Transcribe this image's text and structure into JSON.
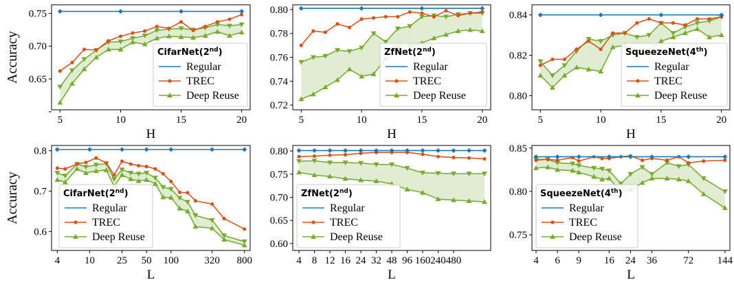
{
  "colors": {
    "regular": "#1f77b4",
    "trec": "#d95319",
    "deep_reuse": "#77ac30",
    "band": "#77ac30"
  },
  "chart_data": [
    {
      "id": "top-cifarnet",
      "type": "line",
      "legend_title": "CifarNet(2",
      "legend_sup": "nd",
      "legend_placement": "bottom-right",
      "xlabel": "H",
      "ylabel": "Accuracy",
      "xscale": "linear",
      "xlim": [
        4.3,
        20.7
      ],
      "ylim": [
        0.603,
        0.763
      ],
      "xticks": [
        5,
        10,
        15,
        20
      ],
      "xtick_labels": [
        "5",
        "10",
        "15",
        "20"
      ],
      "yticks": [
        0.65,
        0.7,
        0.75
      ],
      "ytick_labels": [
        "0.65",
        "0.70",
        "0.75"
      ],
      "y_minor_ticks": [
        0.6
      ],
      "regular": {
        "x": [
          5,
          10,
          15,
          20
        ],
        "y": [
          0.753,
          0.753,
          0.753,
          0.753
        ]
      },
      "x": [
        5,
        6,
        7,
        8,
        9,
        10,
        11,
        12,
        13,
        14,
        15,
        16,
        17,
        18,
        19,
        20
      ],
      "series": [
        {
          "name": "TREC",
          "values": [
            0.662,
            0.675,
            0.695,
            0.694,
            0.708,
            0.715,
            0.72,
            0.723,
            0.73,
            0.727,
            0.737,
            0.724,
            0.73,
            0.737,
            0.741,
            0.748
          ]
        },
        {
          "name": "Deep Reuse",
          "upper": [
            0.638,
            0.663,
            0.68,
            0.694,
            0.706,
            0.707,
            0.712,
            0.716,
            0.724,
            0.726,
            0.727,
            0.725,
            0.728,
            0.733,
            0.731,
            0.733
          ],
          "lower": [
            0.614,
            0.643,
            0.665,
            0.683,
            0.695,
            0.695,
            0.706,
            0.703,
            0.712,
            0.715,
            0.714,
            0.713,
            0.716,
            0.722,
            0.716,
            0.721
          ]
        }
      ]
    },
    {
      "id": "top-zfnet",
      "type": "line",
      "legend_title": "ZfNet(2",
      "legend_sup": "nd",
      "legend_placement": "bottom-right",
      "xlabel": "H",
      "ylabel": "",
      "xscale": "linear",
      "xlim": [
        4.3,
        20.7
      ],
      "ylim": [
        0.716,
        0.804
      ],
      "xticks": [
        5,
        10,
        15,
        20
      ],
      "xtick_labels": [
        "5",
        "10",
        "15",
        "20"
      ],
      "yticks": [
        0.72,
        0.74,
        0.76,
        0.78,
        0.8
      ],
      "ytick_labels": [
        "0.72",
        "0.74",
        "0.76",
        "0.78",
        "0.80"
      ],
      "regular": {
        "x": [
          5,
          10,
          15,
          20
        ],
        "y": [
          0.801,
          0.801,
          0.801,
          0.801
        ]
      },
      "x": [
        5,
        6,
        7,
        8,
        9,
        10,
        11,
        12,
        13,
        14,
        15,
        16,
        17,
        18,
        19,
        20
      ],
      "series": [
        {
          "name": "TREC",
          "values": [
            0.77,
            0.782,
            0.781,
            0.788,
            0.785,
            0.792,
            0.793,
            0.794,
            0.794,
            0.798,
            0.797,
            0.794,
            0.799,
            0.795,
            0.797,
            0.798
          ]
        },
        {
          "name": "Deep Reuse",
          "upper": [
            0.756,
            0.76,
            0.761,
            0.766,
            0.765,
            0.768,
            0.78,
            0.773,
            0.784,
            0.786,
            0.794,
            0.795,
            0.794,
            0.796,
            0.797,
            0.797
          ],
          "lower": [
            0.725,
            0.729,
            0.735,
            0.741,
            0.75,
            0.744,
            0.746,
            0.759,
            0.77,
            0.77,
            0.772,
            0.776,
            0.779,
            0.782,
            0.783,
            0.782
          ]
        }
      ]
    },
    {
      "id": "top-squeezenet",
      "type": "line",
      "legend_title": "SqueezeNet(4",
      "legend_sup": "th",
      "legend_placement": "bottom-right",
      "xlabel": "H",
      "ylabel": "",
      "xscale": "linear",
      "xlim": [
        4.3,
        20.7
      ],
      "ylim": [
        0.793,
        0.845
      ],
      "xticks": [
        5,
        10,
        15,
        20
      ],
      "xtick_labels": [
        "5",
        "10",
        "15",
        "20"
      ],
      "yticks": [
        0.8,
        0.82,
        0.84
      ],
      "ytick_labels": [
        "0.80",
        "0.82",
        "0.84"
      ],
      "regular": {
        "x": [
          5,
          10,
          15,
          20
        ],
        "y": [
          0.84,
          0.84,
          0.84,
          0.84
        ]
      },
      "x": [
        5,
        6,
        7,
        8,
        9,
        10,
        11,
        12,
        13,
        14,
        15,
        16,
        17,
        18,
        19,
        20
      ],
      "series": [
        {
          "name": "TREC",
          "values": [
            0.815,
            0.818,
            0.818,
            0.823,
            0.827,
            0.823,
            0.831,
            0.831,
            0.836,
            0.838,
            0.836,
            0.836,
            0.835,
            0.838,
            0.838,
            0.839
          ]
        },
        {
          "name": "Deep Reuse",
          "upper": [
            0.817,
            0.81,
            0.815,
            0.822,
            0.828,
            0.827,
            0.83,
            0.831,
            0.829,
            0.83,
            0.836,
            0.831,
            0.834,
            0.836,
            0.837,
            0.839
          ],
          "lower": [
            0.81,
            0.804,
            0.81,
            0.814,
            0.813,
            0.812,
            0.824,
            0.825,
            0.82,
            0.822,
            0.827,
            0.829,
            0.831,
            0.833,
            0.829,
            0.83
          ]
        }
      ]
    },
    {
      "id": "bottom-cifarnet",
      "type": "line",
      "legend_title": "CifarNet(2",
      "legend_sup": "nd",
      "legend_placement": "bottom-left",
      "xlabel": "L",
      "ylabel": "Accuracy",
      "xscale": "log",
      "xlim": [
        3.4,
        940
      ],
      "ylim": [
        0.553,
        0.813
      ],
      "xticks": [
        4,
        10,
        25,
        50,
        100,
        320,
        800
      ],
      "xtick_labels": [
        "4",
        "10",
        "25",
        "50",
        "100",
        "320",
        "800"
      ],
      "yticks": [
        0.6,
        0.7,
        0.8
      ],
      "ytick_labels": [
        "0.6",
        "0.7",
        "0.8"
      ],
      "regular": {
        "x": [
          4,
          10,
          25,
          50,
          100,
          320,
          800
        ],
        "y": [
          0.803,
          0.803,
          0.803,
          0.803,
          0.803,
          0.803,
          0.803
        ]
      },
      "x": [
        4,
        5,
        7,
        9,
        12,
        16,
        20,
        25,
        32,
        40,
        50,
        64,
        80,
        100,
        128,
        160,
        200,
        320,
        450,
        800
      ],
      "series": [
        {
          "name": "TREC",
          "values": [
            0.757,
            0.755,
            0.767,
            0.771,
            0.782,
            0.77,
            0.74,
            0.774,
            0.767,
            0.763,
            0.761,
            0.755,
            0.743,
            0.724,
            0.697,
            0.696,
            0.676,
            0.668,
            0.632,
            0.606
          ]
        },
        {
          "name": "Deep Reuse",
          "upper": [
            0.745,
            0.738,
            0.767,
            0.76,
            0.765,
            0.768,
            0.73,
            0.753,
            0.745,
            0.743,
            0.745,
            0.733,
            0.71,
            0.705,
            0.683,
            0.673,
            0.64,
            0.628,
            0.59,
            0.575
          ],
          "lower": [
            0.728,
            0.722,
            0.755,
            0.745,
            0.75,
            0.752,
            0.712,
            0.74,
            0.73,
            0.725,
            0.728,
            0.718,
            0.685,
            0.684,
            0.657,
            0.65,
            0.612,
            0.608,
            0.58,
            0.566
          ]
        }
      ]
    },
    {
      "id": "bottom-zfnet",
      "type": "line",
      "legend_title": "ZfNet(2",
      "legend_sup": "nd",
      "legend_placement": "bottom-left",
      "xlabel": "L",
      "ylabel": "",
      "xscale": "category",
      "xlim": [
        -0.4,
        12.4
      ],
      "ylim": [
        0.585,
        0.812
      ],
      "categories": [
        "4",
        "8",
        "12",
        "16",
        "24",
        "32",
        "48",
        "96",
        "160",
        "240",
        "480"
      ],
      "cat_positions": [
        0,
        1,
        2,
        3,
        4,
        5,
        6,
        7,
        8,
        9,
        10
      ],
      "xticks": [
        0,
        1,
        2,
        3,
        4,
        5,
        6,
        7,
        8,
        9,
        10
      ],
      "yticks": [
        0.6,
        0.65,
        0.7,
        0.75,
        0.8
      ],
      "ytick_labels": [
        "0.60",
        "0.65",
        "0.70",
        "0.75",
        "0.80"
      ],
      "regular": {
        "x": [
          0,
          1,
          2,
          3,
          4,
          5,
          6,
          7,
          8,
          9,
          10,
          11,
          12
        ],
        "y": [
          0.801,
          0.801,
          0.801,
          0.801,
          0.801,
          0.801,
          0.801,
          0.801,
          0.801,
          0.801,
          0.801,
          0.801,
          0.801
        ]
      },
      "x": [
        0,
        1,
        2,
        3,
        4,
        5,
        6,
        7,
        8,
        9,
        10,
        11,
        12
      ],
      "series": [
        {
          "name": "TREC",
          "values": [
            0.788,
            0.789,
            0.791,
            0.792,
            0.795,
            0.797,
            0.797,
            0.797,
            0.793,
            0.788,
            0.786,
            0.785,
            0.783
          ]
        },
        {
          "name": "Deep Reuse",
          "upper": [
            0.778,
            0.779,
            0.775,
            0.775,
            0.774,
            0.771,
            0.771,
            0.763,
            0.753,
            0.752,
            0.751,
            0.751,
            0.751
          ],
          "lower": [
            0.754,
            0.748,
            0.745,
            0.74,
            0.737,
            0.735,
            0.729,
            0.717,
            0.71,
            0.696,
            0.694,
            0.692,
            0.69
          ]
        }
      ]
    },
    {
      "id": "bottom-squeezenet",
      "type": "line",
      "legend_title": "SqueezeNet(4",
      "legend_sup": "th",
      "legend_placement": "bottom-left",
      "xlabel": "L",
      "ylabel": "",
      "xscale": "log",
      "xlim": [
        3.7,
        158
      ],
      "ylim": [
        0.732,
        0.853
      ],
      "xticks": [
        4,
        6,
        9,
        16,
        24,
        36,
        72,
        144
      ],
      "xtick_labels": [
        "4",
        "6",
        "9",
        "16",
        "24",
        "36",
        "72",
        "144"
      ],
      "yticks": [
        0.75,
        0.8,
        0.85
      ],
      "ytick_labels": [
        "0.75",
        "0.80",
        "0.85"
      ],
      "regular": {
        "x": [
          4,
          6,
          9,
          16,
          24,
          36,
          72,
          144
        ],
        "y": [
          0.84,
          0.84,
          0.84,
          0.84,
          0.84,
          0.84,
          0.84,
          0.84
        ]
      },
      "x": [
        4,
        5,
        6,
        8,
        9,
        12,
        14,
        16,
        20,
        24,
        30,
        36,
        48,
        60,
        72,
        96,
        144
      ],
      "series": [
        {
          "name": "TREC",
          "values": [
            0.836,
            0.837,
            0.836,
            0.839,
            0.835,
            0.84,
            0.838,
            0.838,
            0.84,
            0.841,
            0.836,
            0.838,
            0.836,
            0.84,
            0.833,
            0.835,
            0.836
          ]
        },
        {
          "name": "Deep Reuse",
          "upper": [
            0.837,
            0.837,
            0.833,
            0.832,
            0.83,
            0.827,
            0.826,
            0.824,
            0.809,
            0.82,
            0.828,
            0.82,
            0.833,
            0.829,
            0.831,
            0.815,
            0.8
          ],
          "lower": [
            0.827,
            0.828,
            0.825,
            0.824,
            0.822,
            0.817,
            0.814,
            0.815,
            0.8,
            0.802,
            0.81,
            0.815,
            0.815,
            0.814,
            0.812,
            0.797,
            0.781
          ]
        }
      ]
    }
  ]
}
